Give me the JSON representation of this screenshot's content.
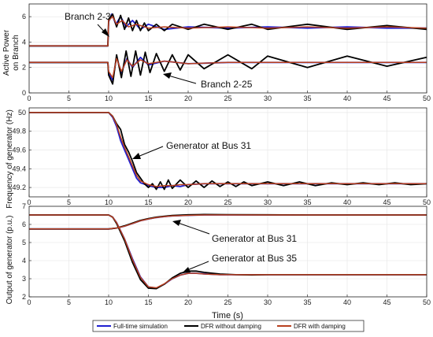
{
  "chart_data": [
    {
      "type": "line",
      "ylabel": "Active Power on Branch",
      "xlim": [
        0,
        50
      ],
      "ylim": [
        0,
        7
      ],
      "xticks": [
        0,
        5,
        10,
        15,
        20,
        25,
        30,
        35,
        40,
        45,
        50
      ],
      "yticks": [
        0,
        2,
        4,
        6
      ],
      "grid": true,
      "annotations": [
        "Branch 2-3",
        "Branch 2-25"
      ],
      "series": [
        {
          "name": "Full-time simulation",
          "color": "#1f1fd0",
          "branch": "Branch 2-3",
          "x": [
            0,
            9.9,
            10,
            10.4,
            10.9,
            11.5,
            12.2,
            13,
            14,
            15,
            17,
            20,
            25,
            30,
            35,
            40,
            45,
            50
          ],
          "y": [
            3.7,
            3.7,
            5.6,
            6.2,
            5.4,
            6.0,
            5.2,
            5.7,
            5.0,
            5.4,
            5.0,
            5.2,
            5.1,
            5.2,
            5.1,
            5.2,
            5.1,
            5.1
          ]
        },
        {
          "name": "DFR without damping",
          "color": "#000000",
          "branch": "Branch 2-3",
          "x": [
            0,
            9.9,
            10,
            10.5,
            11,
            11.5,
            12,
            12.5,
            13,
            13.5,
            14,
            14.5,
            15,
            16,
            17,
            18,
            20,
            22,
            25,
            28,
            30,
            35,
            40,
            45,
            50
          ],
          "y": [
            3.7,
            3.7,
            5.8,
            6.2,
            5.2,
            6.1,
            5.0,
            5.9,
            4.9,
            5.7,
            4.9,
            5.5,
            4.9,
            5.4,
            4.9,
            5.4,
            5.0,
            5.4,
            5.0,
            5.4,
            5.0,
            5.4,
            5.0,
            5.3,
            5.0
          ]
        },
        {
          "name": "DFR with damping",
          "color": "#b8401f",
          "branch": "Branch 2-3",
          "x": [
            0,
            9.9,
            10,
            10.5,
            11,
            11.7,
            12.5,
            13.5,
            15,
            17,
            20,
            25,
            30,
            35,
            40,
            45,
            50
          ],
          "y": [
            3.7,
            3.7,
            5.7,
            6.0,
            5.4,
            5.7,
            5.2,
            5.4,
            5.1,
            5.2,
            5.1,
            5.2,
            5.1,
            5.2,
            5.1,
            5.2,
            5.1
          ]
        },
        {
          "name": "Full-time simulation",
          "color": "#1f1fd0",
          "branch": "Branch 2-25",
          "x": [
            0,
            9.9,
            10,
            10.5,
            11,
            11.6,
            12.3,
            13,
            14,
            15,
            17,
            20,
            25,
            30,
            35,
            40,
            45,
            50
          ],
          "y": [
            2.4,
            2.4,
            1.6,
            1.0,
            2.8,
            1.6,
            2.7,
            2.0,
            2.8,
            2.2,
            2.5,
            2.3,
            2.4,
            2.4,
            2.4,
            2.4,
            2.4,
            2.4
          ]
        },
        {
          "name": "DFR without damping",
          "color": "#000000",
          "branch": "Branch 2-25",
          "x": [
            0,
            9.9,
            10,
            10.5,
            11,
            11.6,
            12.2,
            12.8,
            13.4,
            14,
            14.6,
            15.2,
            16,
            17,
            18,
            19,
            20,
            22,
            25,
            28,
            30,
            35,
            40,
            45,
            50
          ],
          "y": [
            2.4,
            2.4,
            1.4,
            0.7,
            3.0,
            1.2,
            3.3,
            1.3,
            3.3,
            1.4,
            3.2,
            1.6,
            3.1,
            1.7,
            3.0,
            1.8,
            3.0,
            1.9,
            3.0,
            1.9,
            2.9,
            2.0,
            2.9,
            2.1,
            2.8
          ]
        },
        {
          "name": "DFR with damping",
          "color": "#b8401f",
          "branch": "Branch 2-25",
          "x": [
            0,
            9.9,
            10,
            10.5,
            11,
            11.6,
            12.3,
            13,
            14,
            15,
            17,
            20,
            25,
            30,
            35,
            40,
            45,
            50
          ],
          "y": [
            2.4,
            2.4,
            1.7,
            1.2,
            2.7,
            1.7,
            2.6,
            2.1,
            2.6,
            2.3,
            2.5,
            2.3,
            2.4,
            2.4,
            2.4,
            2.4,
            2.4,
            2.4
          ]
        }
      ]
    },
    {
      "type": "line",
      "ylabel": "Frequency of generator (Hz)",
      "xlim": [
        0,
        50
      ],
      "ylim": [
        49.1,
        50.05
      ],
      "xticks": [
        0,
        5,
        10,
        15,
        20,
        25,
        30,
        35,
        40,
        45,
        50
      ],
      "yticks": [
        49.2,
        49.4,
        49.6,
        49.8,
        50
      ],
      "grid": true,
      "annotations": [
        "Generator at Bus 31"
      ],
      "series": [
        {
          "name": "Full-time simulation",
          "color": "#1f1fd0",
          "x": [
            0,
            10,
            10.5,
            11,
            11.5,
            12,
            12.5,
            13,
            13.5,
            14,
            15,
            16,
            17,
            18,
            19,
            20,
            22,
            25,
            30,
            35,
            40,
            45,
            50
          ],
          "y": [
            50.0,
            50.0,
            49.95,
            49.85,
            49.7,
            49.6,
            49.5,
            49.4,
            49.3,
            49.25,
            49.22,
            49.2,
            49.2,
            49.22,
            49.21,
            49.23,
            49.24,
            49.24,
            49.24,
            49.24,
            49.24,
            49.24,
            49.24
          ]
        },
        {
          "name": "DFR without damping",
          "color": "#000000",
          "x": [
            0,
            10,
            10.5,
            11,
            11.5,
            12,
            12.5,
            13,
            13.5,
            14,
            14.5,
            15,
            15.5,
            16,
            16.5,
            17,
            17.5,
            18,
            19,
            20,
            21,
            22,
            23,
            24,
            25,
            26,
            27,
            28,
            30,
            32,
            34,
            36,
            38,
            40,
            42,
            44,
            46,
            48,
            50
          ],
          "y": [
            50.0,
            50.0,
            49.96,
            49.88,
            49.82,
            49.66,
            49.58,
            49.48,
            49.36,
            49.3,
            49.24,
            49.2,
            49.24,
            49.18,
            49.26,
            49.18,
            49.28,
            49.19,
            49.28,
            49.2,
            49.27,
            49.2,
            49.27,
            49.21,
            49.26,
            49.21,
            49.26,
            49.22,
            49.26,
            49.22,
            49.26,
            49.22,
            49.25,
            49.23,
            49.25,
            49.23,
            49.25,
            49.23,
            49.24
          ]
        },
        {
          "name": "DFR with damping",
          "color": "#b8401f",
          "x": [
            0,
            10,
            10.5,
            11,
            11.5,
            12,
            12.5,
            13,
            13.5,
            14,
            15,
            16,
            17,
            18,
            19,
            20,
            22,
            25,
            30,
            35,
            40,
            45,
            50
          ],
          "y": [
            50.0,
            50.0,
            49.96,
            49.87,
            49.74,
            49.63,
            49.53,
            49.43,
            49.33,
            49.27,
            49.23,
            49.21,
            49.22,
            49.22,
            49.23,
            49.23,
            49.24,
            49.24,
            49.24,
            49.24,
            49.24,
            49.24,
            49.24
          ]
        }
      ]
    },
    {
      "type": "line",
      "ylabel": "Output of generator (p.u.)",
      "xlabel": "Time (s)",
      "xlim": [
        0,
        50
      ],
      "ylim": [
        2,
        7
      ],
      "xticks": [
        0,
        5,
        10,
        15,
        20,
        25,
        30,
        35,
        40,
        45,
        50
      ],
      "yticks": [
        2,
        3,
        4,
        5,
        6,
        7
      ],
      "grid": true,
      "annotations": [
        "Generator at Bus 31",
        "Generator at Bus 35"
      ],
      "series": [
        {
          "name": "Full-time simulation",
          "color": "#1f1fd0",
          "generator": "Bus 31",
          "x": [
            0,
            10,
            11,
            12,
            13,
            14,
            15,
            16,
            17,
            18,
            20,
            22,
            25,
            30,
            35,
            40,
            45,
            50
          ],
          "y": [
            5.75,
            5.75,
            5.8,
            5.9,
            6.05,
            6.2,
            6.3,
            6.38,
            6.43,
            6.47,
            6.5,
            6.52,
            6.52,
            6.52,
            6.52,
            6.52,
            6.52,
            6.52
          ]
        },
        {
          "name": "DFR without damping",
          "color": "#000000",
          "generator": "Bus 31",
          "x": [
            0,
            10,
            11,
            12,
            13,
            14,
            15,
            16,
            17,
            18,
            20,
            22,
            25,
            30,
            35,
            40,
            45,
            50
          ],
          "y": [
            5.75,
            5.75,
            5.8,
            5.92,
            6.07,
            6.22,
            6.32,
            6.4,
            6.45,
            6.49,
            6.53,
            6.55,
            6.54,
            6.53,
            6.52,
            6.52,
            6.52,
            6.52
          ]
        },
        {
          "name": "DFR with damping",
          "color": "#b8401f",
          "generator": "Bus 31",
          "x": [
            0,
            10,
            11,
            12,
            13,
            14,
            15,
            16,
            17,
            18,
            20,
            22,
            25,
            30,
            35,
            40,
            45,
            50
          ],
          "y": [
            5.75,
            5.75,
            5.8,
            5.9,
            6.05,
            6.2,
            6.3,
            6.38,
            6.43,
            6.47,
            6.5,
            6.52,
            6.52,
            6.52,
            6.52,
            6.52,
            6.52,
            6.52
          ]
        },
        {
          "name": "Full-time simulation",
          "color": "#1f1fd0",
          "generator": "Bus 35",
          "x": [
            0,
            10,
            10.5,
            11,
            12,
            13,
            14,
            15,
            16,
            17,
            18,
            19,
            20,
            21,
            22,
            24,
            26,
            28,
            30,
            35,
            40,
            45,
            50
          ],
          "y": [
            6.52,
            6.52,
            6.4,
            6.1,
            5.2,
            4.1,
            3.1,
            2.55,
            2.48,
            2.7,
            3.0,
            3.2,
            3.3,
            3.3,
            3.27,
            3.22,
            3.22,
            3.22,
            3.22,
            3.22,
            3.22,
            3.22,
            3.22
          ]
        },
        {
          "name": "DFR without damping",
          "color": "#000000",
          "generator": "Bus 35",
          "x": [
            0,
            10,
            10.5,
            11,
            12,
            13,
            14,
            15,
            16,
            17,
            18,
            19,
            20,
            21,
            22,
            24,
            26,
            28,
            30,
            35,
            40,
            45,
            50
          ],
          "y": [
            6.52,
            6.52,
            6.4,
            6.05,
            5.1,
            3.9,
            2.95,
            2.48,
            2.45,
            2.7,
            3.05,
            3.3,
            3.42,
            3.42,
            3.35,
            3.26,
            3.22,
            3.21,
            3.22,
            3.22,
            3.22,
            3.22,
            3.22
          ]
        },
        {
          "name": "DFR with damping",
          "color": "#b8401f",
          "generator": "Bus 35",
          "x": [
            0,
            10,
            10.5,
            11,
            12,
            13,
            14,
            15,
            16,
            17,
            18,
            19,
            20,
            21,
            22,
            24,
            26,
            28,
            30,
            35,
            40,
            45,
            50
          ],
          "y": [
            6.52,
            6.52,
            6.4,
            6.1,
            5.2,
            4.05,
            3.08,
            2.55,
            2.5,
            2.72,
            3.0,
            3.2,
            3.3,
            3.3,
            3.26,
            3.22,
            3.22,
            3.22,
            3.22,
            3.22,
            3.22,
            3.22,
            3.22
          ]
        }
      ]
    }
  ],
  "legend": {
    "items": [
      {
        "label": "Full-time simulation",
        "color": "#1f1fd0"
      },
      {
        "label": "DFR without damping",
        "color": "#000000"
      },
      {
        "label": "DFR with damping",
        "color": "#b8401f"
      }
    ],
    "placement": "bottom"
  }
}
